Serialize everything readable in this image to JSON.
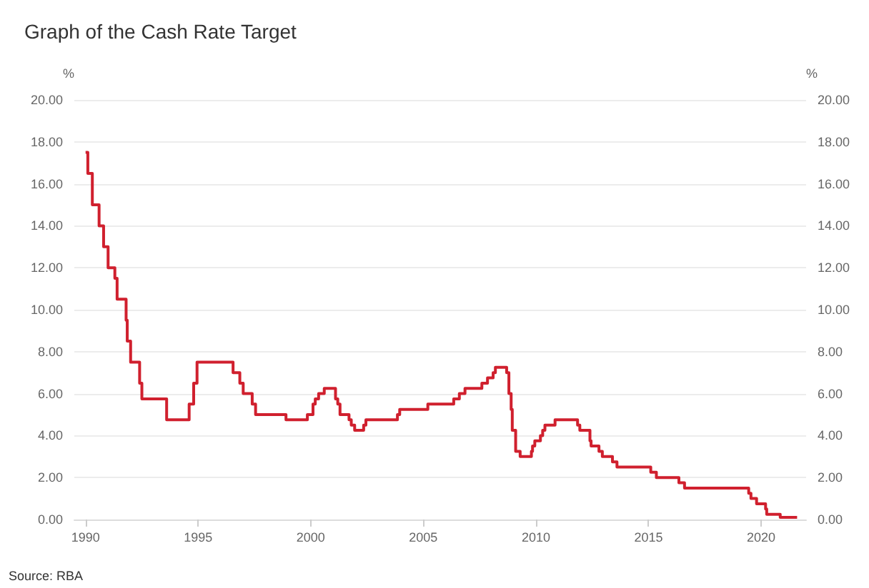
{
  "chart_data": {
    "type": "step",
    "title": "Graph of the Cash Rate Target",
    "ylabel": "%",
    "y2label": "%",
    "annotations": [
      "Source: RBA"
    ],
    "x": [
      1990.0,
      1990.1,
      1990.3,
      1990.6,
      1990.8,
      1991.0,
      1991.3,
      1991.4,
      1991.8,
      1991.85,
      1992.0,
      1992.4,
      1992.5,
      1993.6,
      1994.6,
      1994.8,
      1994.95,
      1996.55,
      1996.85,
      1997.0,
      1997.4,
      1997.55,
      1998.9,
      1999.85,
      2000.1,
      2000.2,
      2000.35,
      2000.6,
      2001.1,
      2001.2,
      2001.3,
      2001.7,
      2001.8,
      2001.95,
      2002.35,
      2002.45,
      2003.85,
      2003.95,
      2005.2,
      2006.35,
      2006.6,
      2006.85,
      2007.6,
      2007.85,
      2008.1,
      2008.2,
      2008.7,
      2008.8,
      2008.9,
      2008.95,
      2009.1,
      2009.3,
      2009.8,
      2009.85,
      2009.95,
      2010.2,
      2010.3,
      2010.4,
      2010.85,
      2011.85,
      2011.95,
      2012.4,
      2012.45,
      2012.8,
      2012.95,
      2013.4,
      2013.6,
      2015.1,
      2015.35,
      2016.35,
      2016.6,
      2019.45,
      2019.55,
      2019.8,
      2020.2,
      2020.25,
      2020.85,
      2021.6
    ],
    "series": [
      {
        "color": "#d0202e",
        "values": [
          17.5,
          16.5,
          15.0,
          14.0,
          13.0,
          12.0,
          11.5,
          10.5,
          9.5,
          8.5,
          7.5,
          6.5,
          5.75,
          4.75,
          5.5,
          6.5,
          7.5,
          7.0,
          6.5,
          6.0,
          5.5,
          5.0,
          4.75,
          5.0,
          5.5,
          5.75,
          6.0,
          6.25,
          5.75,
          5.5,
          5.0,
          4.75,
          4.5,
          4.25,
          4.5,
          4.75,
          5.0,
          5.25,
          5.5,
          5.75,
          6.0,
          6.25,
          6.5,
          6.75,
          7.0,
          7.25,
          7.0,
          6.0,
          5.25,
          4.25,
          3.25,
          3.0,
          3.25,
          3.5,
          3.75,
          4.0,
          4.25,
          4.5,
          4.75,
          4.5,
          4.25,
          3.75,
          3.5,
          3.25,
          3.0,
          2.75,
          2.5,
          2.25,
          2.0,
          1.75,
          1.5,
          1.25,
          1.0,
          0.75,
          0.5,
          0.25,
          0.1,
          0.1
        ]
      }
    ],
    "xlim": [
      1989.5,
      2022
    ],
    "xticks": [
      1990,
      1995,
      2000,
      2005,
      2010,
      2015,
      2020
    ],
    "ylim": [
      0,
      20
    ],
    "yticks": [
      {
        "value": 0,
        "label": "0.00"
      },
      {
        "value": 2,
        "label": "2.00"
      },
      {
        "value": 4,
        "label": "4.00"
      },
      {
        "value": 6,
        "label": "6.00"
      },
      {
        "value": 8,
        "label": "8.00"
      },
      {
        "value": 10,
        "label": "10.00"
      },
      {
        "value": 12,
        "label": "12.00"
      },
      {
        "value": 14,
        "label": "14.00"
      },
      {
        "value": 16,
        "label": "16.00"
      },
      {
        "value": 18,
        "label": "18.00"
      },
      {
        "value": 20,
        "label": "20.00"
      }
    ],
    "y2lim": [
      0,
      20
    ],
    "y2ticks": [
      {
        "value": 0,
        "label": "0.00"
      },
      {
        "value": 2,
        "label": "2.00"
      },
      {
        "value": 4,
        "label": "4.00"
      },
      {
        "value": 6,
        "label": "6.00"
      },
      {
        "value": 8,
        "label": "8.00"
      },
      {
        "value": 10,
        "label": "10.00"
      },
      {
        "value": 12,
        "label": "12.00"
      },
      {
        "value": 14,
        "label": "14.00"
      },
      {
        "value": 16,
        "label": "16.00"
      },
      {
        "value": 18,
        "label": "18.00"
      },
      {
        "value": 20,
        "label": "20.00"
      }
    ],
    "grid": "y",
    "marker": "none",
    "line_style": "solid"
  }
}
